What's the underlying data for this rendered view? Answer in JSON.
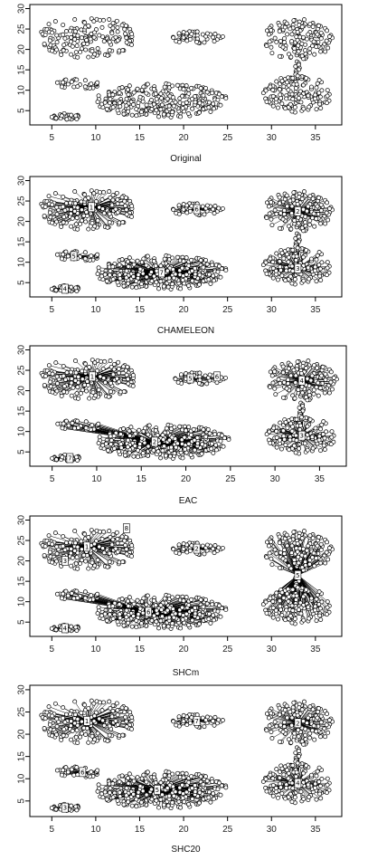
{
  "chart_data": [
    {
      "type": "scatter",
      "xlabel": "Original",
      "xlim": [
        2.5,
        38
      ],
      "ylim": [
        1.5,
        31
      ],
      "xticks": [
        5,
        10,
        15,
        20,
        25,
        30,
        35
      ],
      "yticks": [
        5,
        10,
        15,
        20,
        25,
        30
      ],
      "groups": [
        {
          "cx": 9,
          "cy": 23,
          "rx": 5.5,
          "ry": 5.2,
          "n": 170
        },
        {
          "cx": 21.5,
          "cy": 23,
          "rx": 3,
          "ry": 1.6,
          "n": 50
        },
        {
          "cx": 8,
          "cy": 11.5,
          "rx": 2.5,
          "ry": 1.3,
          "n": 35
        },
        {
          "cx": 17.5,
          "cy": 7.5,
          "rx": 7.5,
          "ry": 4.2,
          "n": 300
        },
        {
          "cx": 6.5,
          "cy": 3.5,
          "rx": 1.8,
          "ry": 0.9,
          "n": 35
        },
        {
          "cx": 33,
          "cy": 22.5,
          "rx": 4,
          "ry": 5,
          "n": 150
        },
        {
          "cx": 33,
          "cy": 9,
          "rx": 4,
          "ry": 4.5,
          "n": 150
        }
      ],
      "bridge": {
        "x1": 32.8,
        "y1": 17,
        "x2": 33,
        "y2": 13.5,
        "n": 10
      },
      "centers": []
    },
    {
      "type": "scatter",
      "xlabel": "CHAMELEON",
      "xlim": [
        2.5,
        38
      ],
      "ylim": [
        1.5,
        31
      ],
      "xticks": [
        5,
        10,
        15,
        20,
        25,
        30,
        35
      ],
      "yticks": [
        5,
        10,
        15,
        20,
        25,
        30
      ],
      "groups": [
        {
          "cx": 9,
          "cy": 23,
          "rx": 5.5,
          "ry": 5.2,
          "n": 170
        },
        {
          "cx": 21.5,
          "cy": 23,
          "rx": 3,
          "ry": 1.6,
          "n": 50
        },
        {
          "cx": 8,
          "cy": 11.5,
          "rx": 2.5,
          "ry": 1.3,
          "n": 35
        },
        {
          "cx": 17.5,
          "cy": 7.5,
          "rx": 7.5,
          "ry": 4.2,
          "n": 300
        },
        {
          "cx": 6.5,
          "cy": 3.5,
          "rx": 1.8,
          "ry": 0.9,
          "n": 35
        },
        {
          "cx": 33,
          "cy": 22.5,
          "rx": 4,
          "ry": 5,
          "n": 150
        },
        {
          "cx": 33,
          "cy": 9,
          "rx": 4,
          "ry": 4.5,
          "n": 150
        }
      ],
      "bridge": {
        "x1": 32.8,
        "y1": 17,
        "x2": 33,
        "y2": 13.5,
        "n": 10
      },
      "centers": [
        {
          "label": "1",
          "x": 9.5,
          "y": 23.5,
          "members": [
            0
          ]
        },
        {
          "label": "6",
          "x": 21.5,
          "y": 23,
          "members": [
            1
          ]
        },
        {
          "label": "5",
          "x": 7.5,
          "y": 11.5,
          "members": [
            2
          ]
        },
        {
          "label": "7",
          "x": 17.5,
          "y": 7.5,
          "members": [
            3
          ]
        },
        {
          "label": "4",
          "x": 6.5,
          "y": 3.5,
          "members": [
            4
          ]
        },
        {
          "label": "2",
          "x": 33,
          "y": 22.5,
          "members": [
            5
          ]
        },
        {
          "label": "3",
          "x": 33,
          "y": 8.5,
          "members": [
            6,
            7
          ]
        }
      ]
    },
    {
      "type": "scatter",
      "xlabel": "EAC",
      "xlim": [
        2.5,
        38
      ],
      "ylim": [
        1.5,
        31
      ],
      "xticks": [
        5,
        10,
        15,
        20,
        25,
        30,
        35
      ],
      "yticks": [
        5,
        10,
        15,
        20,
        25,
        30
      ],
      "groups": [
        {
          "cx": 9,
          "cy": 23,
          "rx": 5.5,
          "ry": 5.2,
          "n": 170
        },
        {
          "cx": 21.5,
          "cy": 23,
          "rx": 3,
          "ry": 1.6,
          "n": 50
        },
        {
          "cx": 8,
          "cy": 11.5,
          "rx": 2.5,
          "ry": 1.3,
          "n": 35
        },
        {
          "cx": 17.5,
          "cy": 7.5,
          "rx": 7.5,
          "ry": 4.2,
          "n": 300
        },
        {
          "cx": 6.5,
          "cy": 3.5,
          "rx": 1.8,
          "ry": 0.9,
          "n": 35
        },
        {
          "cx": 33,
          "cy": 22.5,
          "rx": 4,
          "ry": 5,
          "n": 150
        },
        {
          "cx": 33,
          "cy": 9,
          "rx": 4,
          "ry": 4.5,
          "n": 150
        }
      ],
      "bridge": {
        "x1": 32.8,
        "y1": 17,
        "x2": 33,
        "y2": 13.5,
        "n": 10
      },
      "centers": [
        {
          "label": "1",
          "x": 9.5,
          "y": 23.5,
          "members": [
            0
          ]
        },
        {
          "label": "5",
          "x": 20.5,
          "y": 23,
          "members": [
            1
          ]
        },
        {
          "label": "6",
          "x": 23.5,
          "y": 23.5,
          "members": []
        },
        {
          "label": "2",
          "x": 16.5,
          "y": 7.5,
          "members": [
            2,
            3
          ]
        },
        {
          "label": "7",
          "x": 7,
          "y": 3.5,
          "members": [
            4
          ]
        },
        {
          "label": "4",
          "x": 33,
          "y": 22.5,
          "members": [
            5
          ]
        },
        {
          "label": "3",
          "x": 33,
          "y": 9,
          "members": [
            6,
            7
          ]
        }
      ]
    },
    {
      "type": "scatter",
      "xlabel": "SHCm",
      "xlim": [
        2.5,
        38
      ],
      "ylim": [
        1.5,
        31
      ],
      "xticks": [
        5,
        10,
        15,
        20,
        25,
        30,
        35
      ],
      "yticks": [
        5,
        10,
        15,
        20,
        25,
        30
      ],
      "groups": [
        {
          "cx": 9,
          "cy": 23,
          "rx": 5.5,
          "ry": 5.2,
          "n": 170
        },
        {
          "cx": 21.5,
          "cy": 23,
          "rx": 3,
          "ry": 1.6,
          "n": 50
        },
        {
          "cx": 8,
          "cy": 11.5,
          "rx": 2.5,
          "ry": 1.3,
          "n": 35
        },
        {
          "cx": 17.5,
          "cy": 7.5,
          "rx": 7.5,
          "ry": 4.2,
          "n": 300
        },
        {
          "cx": 6.5,
          "cy": 3.5,
          "rx": 1.8,
          "ry": 0.9,
          "n": 35
        },
        {
          "cx": 33,
          "cy": 22.5,
          "rx": 4,
          "ry": 5,
          "n": 150
        },
        {
          "cx": 33,
          "cy": 9,
          "rx": 4,
          "ry": 4.5,
          "n": 150
        }
      ],
      "bridge": {
        "x1": 32.8,
        "y1": 17,
        "x2": 33,
        "y2": 13.5,
        "n": 10
      },
      "centers": [
        {
          "label": "1",
          "x": 9,
          "y": 23.5,
          "members": [
            0
          ]
        },
        {
          "label": "8",
          "x": 13.5,
          "y": 28,
          "members": []
        },
        {
          "label": "3",
          "x": 6.5,
          "y": 20,
          "members": []
        },
        {
          "label": "2",
          "x": 21.5,
          "y": 23,
          "members": [
            1
          ]
        },
        {
          "label": "6",
          "x": 16,
          "y": 7.5,
          "members": [
            2,
            3
          ]
        },
        {
          "label": "4",
          "x": 6.5,
          "y": 3.5,
          "members": [
            4
          ]
        },
        {
          "label": "5",
          "x": 33,
          "y": 16.5,
          "members": [
            5,
            6,
            7
          ]
        }
      ]
    },
    {
      "type": "scatter",
      "xlabel": "SHC20",
      "xlim": [
        2.5,
        38
      ],
      "ylim": [
        1.5,
        31
      ],
      "xticks": [
        5,
        10,
        15,
        20,
        25,
        30,
        35
      ],
      "yticks": [
        5,
        10,
        15,
        20,
        25,
        30
      ],
      "groups": [
        {
          "cx": 9,
          "cy": 23,
          "rx": 5.5,
          "ry": 5.2,
          "n": 170
        },
        {
          "cx": 21.5,
          "cy": 23,
          "rx": 3,
          "ry": 1.6,
          "n": 50
        },
        {
          "cx": 8,
          "cy": 11.5,
          "rx": 2.5,
          "ry": 1.3,
          "n": 35
        },
        {
          "cx": 17.5,
          "cy": 7.5,
          "rx": 7.5,
          "ry": 4.2,
          "n": 300
        },
        {
          "cx": 6.5,
          "cy": 3.5,
          "rx": 1.8,
          "ry": 0.9,
          "n": 35
        },
        {
          "cx": 33,
          "cy": 22.5,
          "rx": 4,
          "ry": 5,
          "n": 150
        },
        {
          "cx": 33,
          "cy": 9,
          "rx": 4,
          "ry": 4.5,
          "n": 150
        }
      ],
      "bridge": {
        "x1": 32.8,
        "y1": 17,
        "x2": 33,
        "y2": 13.5,
        "n": 10
      },
      "centers": [
        {
          "label": "1",
          "x": 9,
          "y": 23,
          "members": [
            0
          ]
        },
        {
          "label": "7",
          "x": 21.5,
          "y": 23,
          "members": [
            1
          ]
        },
        {
          "label": "6",
          "x": 8.5,
          "y": 11.5,
          "members": [
            2
          ]
        },
        {
          "label": "5",
          "x": 17,
          "y": 7.5,
          "members": [
            3
          ]
        },
        {
          "label": "3",
          "x": 6.5,
          "y": 3.5,
          "members": [
            4
          ]
        },
        {
          "label": "2",
          "x": 33,
          "y": 22.5,
          "members": [
            5
          ]
        },
        {
          "label": "4",
          "x": 33,
          "y": 9,
          "members": [
            6,
            7
          ]
        }
      ]
    }
  ]
}
